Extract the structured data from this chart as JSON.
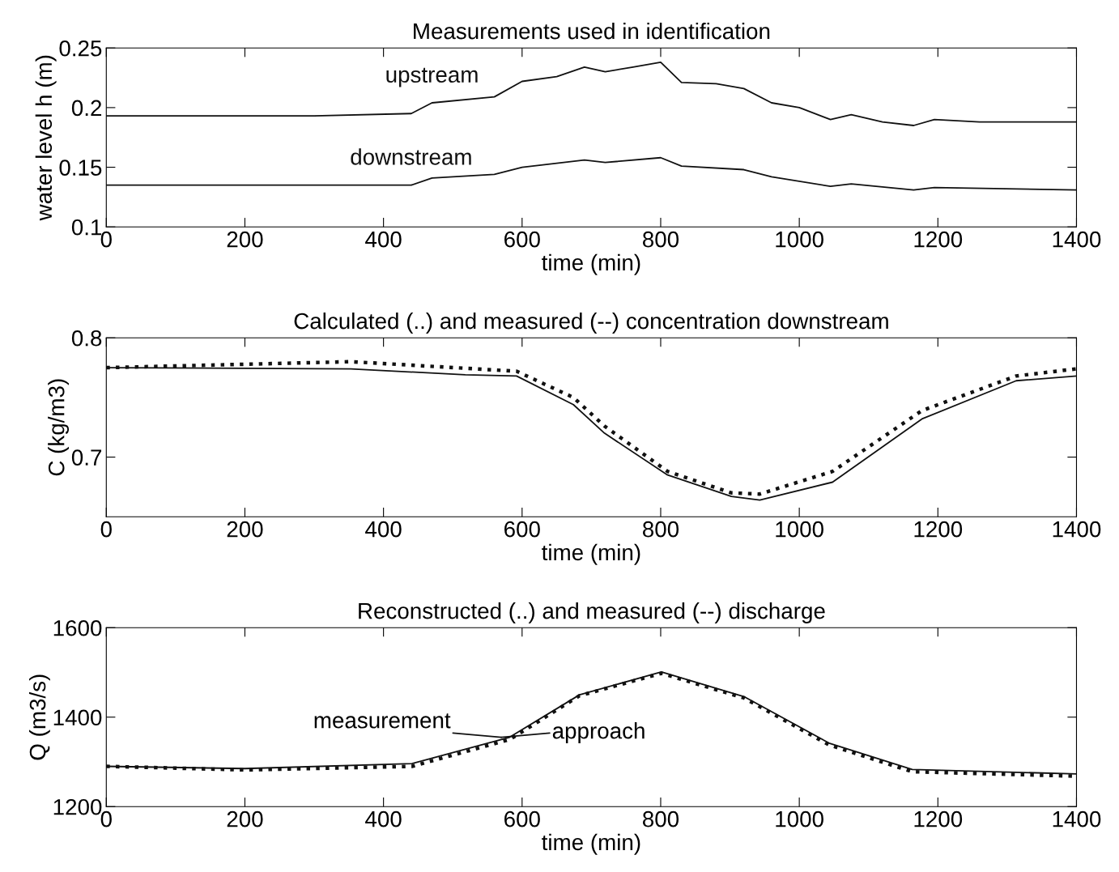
{
  "chart_data": [
    {
      "type": "line",
      "title": "Measurements used in identification",
      "xlabel": "time (min)",
      "ylabel": "water level h (m)",
      "xlim": [
        0,
        1400
      ],
      "xticks": [
        0,
        200,
        400,
        600,
        800,
        1000,
        1200,
        1400
      ],
      "ylim": [
        0.1,
        0.25
      ],
      "yticks": [
        0.1,
        0.15,
        0.2,
        0.25
      ],
      "grid": false,
      "legend": false,
      "series": [
        {
          "name": "upstream",
          "color": "#111111",
          "line_style": "solid",
          "x": [
            0,
            300,
            440,
            470,
            560,
            600,
            650,
            690,
            720,
            760,
            800,
            830,
            880,
            920,
            960,
            1000,
            1045,
            1075,
            1120,
            1165,
            1195,
            1260,
            1400
          ],
          "values": [
            0.193,
            0.193,
            0.195,
            0.204,
            0.209,
            0.222,
            0.226,
            0.234,
            0.23,
            0.234,
            0.238,
            0.221,
            0.22,
            0.216,
            0.204,
            0.2,
            0.19,
            0.194,
            0.188,
            0.185,
            0.19,
            0.188,
            0.188
          ]
        },
        {
          "name": "downstream",
          "color": "#111111",
          "line_style": "solid",
          "x": [
            0,
            300,
            440,
            470,
            560,
            600,
            690,
            720,
            800,
            830,
            920,
            960,
            1045,
            1075,
            1165,
            1195,
            1400
          ],
          "values": [
            0.135,
            0.135,
            0.135,
            0.141,
            0.144,
            0.15,
            0.156,
            0.154,
            0.158,
            0.151,
            0.148,
            0.142,
            0.134,
            0.136,
            0.131,
            0.133,
            0.131
          ]
        }
      ]
    },
    {
      "type": "line",
      "title": "Calculated (..) and measured (--) concentration downstream",
      "xlabel": "time (min)",
      "ylabel": "C (kg/m3)",
      "xlim": [
        0,
        1400
      ],
      "xticks": [
        0,
        200,
        400,
        600,
        800,
        1000,
        1200,
        1400
      ],
      "ylim": [
        0.65,
        0.8
      ],
      "yticks": [
        0.7,
        0.8
      ],
      "grid": false,
      "legend": false,
      "series": [
        {
          "color": "#111111",
          "line_style": "solid",
          "x": [
            0,
            353,
            518,
            592,
            674,
            719,
            810,
            902,
            943,
            1048,
            1177,
            1313,
            1400
          ],
          "values": [
            0.775,
            0.774,
            0.769,
            0.768,
            0.744,
            0.72,
            0.685,
            0.667,
            0.664,
            0.679,
            0.732,
            0.764,
            0.768
          ]
        },
        {
          "color": "#111111",
          "line_style": "dotted",
          "x": [
            0,
            353,
            592,
            674,
            719,
            810,
            902,
            943,
            1048,
            1177,
            1313,
            1400
          ],
          "values": [
            0.775,
            0.78,
            0.772,
            0.75,
            0.726,
            0.688,
            0.67,
            0.669,
            0.688,
            0.739,
            0.768,
            0.774
          ]
        }
      ]
    },
    {
      "type": "line",
      "title": "Reconstructed (..) and measured (--) discharge",
      "xlabel": "time (min)",
      "ylabel": "Q (m3/s)",
      "xlim": [
        0,
        1400
      ],
      "xticks": [
        0,
        200,
        400,
        600,
        800,
        1000,
        1200,
        1400
      ],
      "ylim": [
        1200,
        1600
      ],
      "yticks": [
        1200,
        1400,
        1600
      ],
      "grid": false,
      "legend": false,
      "annotations": [
        {
          "text": "measurement",
          "x": 570,
          "y": 1355
        },
        {
          "text": "approach",
          "x": 570,
          "y": 1355
        }
      ],
      "series": [
        {
          "color": "#111111",
          "line_style": "solid",
          "x": [
            0,
            200,
            441,
            582,
            683,
            801,
            920,
            1043,
            1163,
            1400
          ],
          "values": [
            1290,
            1285,
            1296,
            1355,
            1450,
            1501,
            1446,
            1342,
            1283,
            1273
          ]
        },
        {
          "color": "#111111",
          "line_style": "dotted",
          "x": [
            0,
            200,
            441,
            582,
            683,
            801,
            920,
            1043,
            1163,
            1400
          ],
          "values": [
            1290,
            1282,
            1290,
            1350,
            1448,
            1498,
            1443,
            1338,
            1278,
            1268
          ]
        }
      ]
    }
  ]
}
